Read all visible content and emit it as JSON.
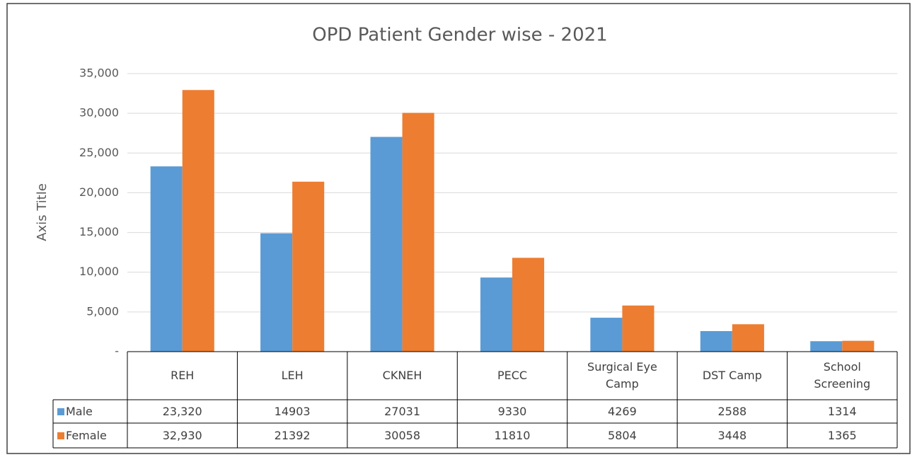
{
  "chart_data": {
    "type": "bar",
    "title": "OPD Patient Gender wise - 2021",
    "y_label": "Axis Title",
    "categories": [
      "REH",
      "LEH",
      "CKNEH",
      "PECC",
      "Surgical Eye Camp",
      "DST Camp",
      "School Screening"
    ],
    "series": [
      {
        "name": "Male",
        "color": "#5b9bd5",
        "values": [
          23320,
          14903,
          27031,
          9330,
          4269,
          2588,
          1314
        ],
        "value_labels": [
          "23,320",
          "14903",
          "27031",
          "9330",
          "4269",
          "2588",
          "1314"
        ]
      },
      {
        "name": "Female",
        "color": "#ed7d31",
        "values": [
          32930,
          21392,
          30058,
          11810,
          5804,
          3448,
          1365
        ],
        "value_labels": [
          "32,930",
          "21392",
          "30058",
          "11810",
          "5804",
          "3448",
          "1365"
        ]
      }
    ],
    "ylim": [
      0,
      35000
    ],
    "yticks": [
      {
        "value": 0,
        "label": "-"
      },
      {
        "value": 5000,
        "label": "5,000"
      },
      {
        "value": 10000,
        "label": "10,000"
      },
      {
        "value": 15000,
        "label": "15,000"
      },
      {
        "value": 20000,
        "label": "20,000"
      },
      {
        "value": 25000,
        "label": "25,000"
      },
      {
        "value": 30000,
        "label": "30,000"
      },
      {
        "value": 35000,
        "label": "35,000"
      }
    ],
    "grid": true,
    "data_table": true
  }
}
